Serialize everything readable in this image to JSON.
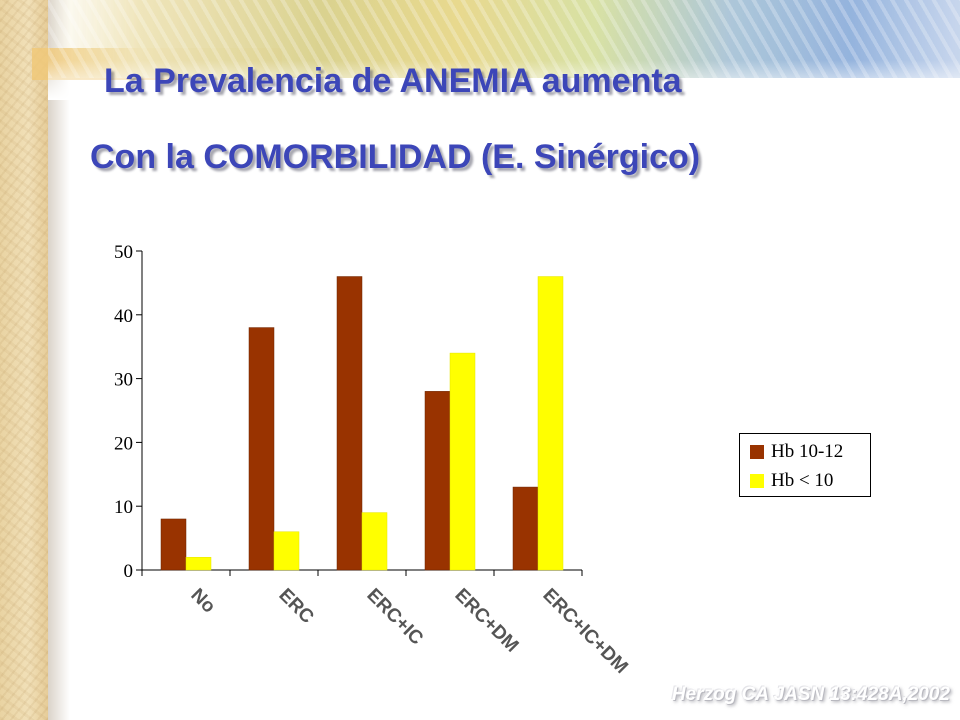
{
  "slide": {
    "title_line1": "La  Prevalencia de ANEMIA aumenta",
    "title_line2": "Con la COMORBILIDAD (E. Sinérgico)",
    "citation": "Herzog CA JASN 13:428A,2002"
  },
  "chart_data": {
    "type": "bar",
    "categories": [
      "No",
      "ERC",
      "ERC+IC",
      "ERC+DM",
      "ERC+IC+DM"
    ],
    "series": [
      {
        "name": "Hb 10-12",
        "color": "#993300",
        "values": [
          8,
          38,
          46,
          28,
          13
        ]
      },
      {
        "name": "Hb < 10",
        "color": "#ffff00",
        "values": [
          2,
          6,
          9,
          34,
          46
        ]
      }
    ],
    "y_ticks": [
      0,
      10,
      20,
      30,
      40,
      50
    ],
    "ylim": [
      0,
      50
    ],
    "grid": false,
    "legend_position": "right",
    "title": "",
    "xlabel": "",
    "ylabel": ""
  }
}
